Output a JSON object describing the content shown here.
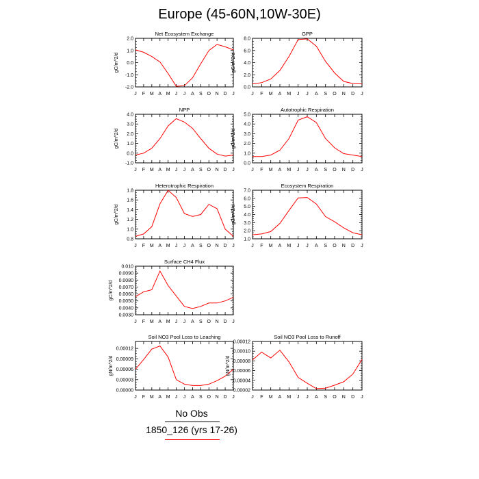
{
  "title": "Europe (45-60N,10W-30E)",
  "legend": {
    "obs_label": "No Obs",
    "model_label": "1850_126 (yrs 17-26)",
    "obs_color": "#000000",
    "model_color": "#ff0000"
  },
  "chart_data": [
    {
      "type": "line",
      "title": "Net Ecosystem Exchange",
      "ylabel": "gC/m^2/d",
      "categories": [
        "J",
        "F",
        "M",
        "A",
        "M",
        "J",
        "J",
        "A",
        "S",
        "O",
        "N",
        "D",
        "J"
      ],
      "ylim": [
        -2.0,
        2.0
      ],
      "yticks": [
        -2.0,
        -1.0,
        0.0,
        1.0,
        2.0
      ],
      "ytick_labels": [
        "-2.0",
        "-1.0",
        "0.0",
        "1.0",
        "2.0"
      ],
      "series": [
        {
          "values": [
            1.05,
            0.85,
            0.5,
            0.05,
            -0.9,
            -1.95,
            -1.9,
            -1.25,
            -0.1,
            1.0,
            1.5,
            1.3,
            1.05
          ],
          "color": "#ff0000"
        }
      ]
    },
    {
      "type": "line",
      "title": "GPP",
      "ylabel": "gC/m^2/d",
      "categories": [
        "J",
        "F",
        "M",
        "A",
        "M",
        "J",
        "J",
        "A",
        "S",
        "O",
        "N",
        "D",
        "J"
      ],
      "ylim": [
        0.0,
        8.0
      ],
      "yticks": [
        0.0,
        2.0,
        4.0,
        6.0,
        8.0
      ],
      "ytick_labels": [
        "0.0",
        "2.0",
        "4.0",
        "6.0",
        "8.0"
      ],
      "series": [
        {
          "values": [
            0.5,
            0.7,
            1.3,
            2.7,
            5.0,
            7.8,
            7.9,
            6.7,
            4.2,
            2.3,
            0.9,
            0.55,
            0.5
          ],
          "color": "#ff0000"
        }
      ]
    },
    {
      "type": "line",
      "title": "NPP",
      "ylabel": "gC/m^2/d",
      "categories": [
        "J",
        "F",
        "M",
        "A",
        "M",
        "J",
        "J",
        "A",
        "S",
        "O",
        "N",
        "D",
        "J"
      ],
      "ylim": [
        -1.0,
        4.0
      ],
      "yticks": [
        -1.0,
        0.0,
        1.0,
        2.0,
        3.0,
        4.0
      ],
      "ytick_labels": [
        "-1.0",
        "0.0",
        "1.0",
        "2.0",
        "3.0",
        "4.0"
      ],
      "series": [
        {
          "values": [
            -0.2,
            0.0,
            0.5,
            1.5,
            2.8,
            3.55,
            3.2,
            2.55,
            1.5,
            0.5,
            -0.1,
            -0.3,
            -0.2
          ],
          "color": "#ff0000"
        }
      ]
    },
    {
      "type": "line",
      "title": "Autotrophic Respiration",
      "ylabel": "gC/m^2/d",
      "categories": [
        "J",
        "F",
        "M",
        "A",
        "M",
        "J",
        "J",
        "A",
        "S",
        "O",
        "N",
        "D",
        "J"
      ],
      "ylim": [
        0.0,
        5.0
      ],
      "yticks": [
        0.0,
        1.0,
        2.0,
        3.0,
        4.0,
        5.0
      ],
      "ytick_labels": [
        "0.0",
        "1.0",
        "2.0",
        "3.0",
        "4.0",
        "5.0"
      ],
      "series": [
        {
          "values": [
            0.65,
            0.65,
            0.8,
            1.3,
            2.5,
            4.4,
            4.75,
            4.15,
            2.5,
            1.55,
            0.95,
            0.8,
            0.65
          ],
          "color": "#ff0000"
        }
      ]
    },
    {
      "type": "line",
      "title": "Heterotrophic Respiration",
      "ylabel": "gC/m^2/d",
      "categories": [
        "J",
        "F",
        "M",
        "A",
        "M",
        "J",
        "J",
        "A",
        "S",
        "O",
        "N",
        "D",
        "J"
      ],
      "ylim": [
        0.8,
        1.8
      ],
      "yticks": [
        0.8,
        1.0,
        1.2,
        1.4,
        1.6,
        1.8
      ],
      "ytick_labels": [
        "0.8",
        "1.0",
        "1.2",
        "1.4",
        "1.6",
        "1.8"
      ],
      "series": [
        {
          "values": [
            0.85,
            0.9,
            1.05,
            1.52,
            1.8,
            1.65,
            1.32,
            1.26,
            1.3,
            1.51,
            1.42,
            1.0,
            0.85
          ],
          "color": "#ff0000"
        }
      ]
    },
    {
      "type": "line",
      "title": "Ecosystem Respiration",
      "ylabel": "gC/m^2/d",
      "categories": [
        "J",
        "F",
        "M",
        "A",
        "M",
        "J",
        "J",
        "A",
        "S",
        "O",
        "N",
        "D",
        "J"
      ],
      "ylim": [
        1.0,
        7.0
      ],
      "yticks": [
        1.0,
        2.0,
        3.0,
        4.0,
        5.0,
        6.0,
        7.0
      ],
      "ytick_labels": [
        "1.0",
        "2.0",
        "3.0",
        "4.0",
        "5.0",
        "6.0",
        "7.0"
      ],
      "series": [
        {
          "values": [
            1.5,
            1.6,
            1.9,
            2.9,
            4.5,
            6.05,
            6.1,
            5.3,
            3.75,
            3.1,
            2.35,
            1.75,
            1.5
          ],
          "color": "#ff0000"
        }
      ]
    },
    {
      "type": "line",
      "title": "Surface CH4 Flux",
      "ylabel": "gC/m^2/d",
      "categories": [
        "J",
        "F",
        "M",
        "A",
        "M",
        "J",
        "J",
        "A",
        "S",
        "O",
        "N",
        "D",
        "J"
      ],
      "ylim": [
        0.003,
        0.01
      ],
      "yticks": [
        0.003,
        0.004,
        0.005,
        0.006,
        0.007,
        0.008,
        0.009,
        0.01
      ],
      "ytick_labels": [
        "0.0030",
        "0.0040",
        "0.0050",
        "0.0060",
        "0.0070",
        "0.0080",
        "0.0090",
        "0.010"
      ],
      "series": [
        {
          "values": [
            0.0056,
            0.0063,
            0.0066,
            0.0093,
            0.0072,
            0.0057,
            0.0042,
            0.0039,
            0.0042,
            0.0047,
            0.0047,
            0.005,
            0.0055
          ],
          "color": "#ff0000"
        }
      ]
    },
    {
      "type": "line",
      "title": "Soil NO3 Pool Loss to Leaching",
      "ylabel": "gN/m^2/d",
      "categories": [
        "J",
        "F",
        "M",
        "A",
        "M",
        "J",
        "J",
        "A",
        "S",
        "O",
        "N",
        "D",
        "J"
      ],
      "ylim": [
        0.0,
        0.00014
      ],
      "yticks": [
        0.0,
        3e-05,
        6e-05,
        9e-05,
        0.00012
      ],
      "ytick_labels": [
        "0.00000",
        "0.00003",
        "0.00006",
        "0.00009",
        "0.00012"
      ],
      "series": [
        {
          "values": [
            6e-05,
            8.8e-05,
            0.000118,
            0.000127,
            9.5e-05,
            3e-05,
            1.7e-05,
            1.3e-05,
            1.3e-05,
            1.7e-05,
            2.7e-05,
            4e-05,
            6e-05
          ],
          "color": "#ff0000"
        }
      ]
    },
    {
      "type": "line",
      "title": "Soil NO3 Pool Loss to Runoff",
      "ylabel": "gN/m^2/d",
      "categories": [
        "J",
        "F",
        "M",
        "A",
        "M",
        "J",
        "J",
        "A",
        "S",
        "O",
        "N",
        "D",
        "J"
      ],
      "ylim": [
        2e-05,
        0.00012
      ],
      "yticks": [
        2e-05,
        4e-05,
        6e-05,
        8e-05,
        0.0001,
        0.00012
      ],
      "ytick_labels": [
        "0.00002",
        "0.00004",
        "0.00006",
        "0.00008",
        "0.00010",
        "0.00012"
      ],
      "series": [
        {
          "values": [
            8.2e-05,
            9.8e-05,
            8.6e-05,
            0.000102,
            7.8e-05,
            4.6e-05,
            3.4e-05,
            2.3e-05,
            2.4e-05,
            3e-05,
            3.7e-05,
            5.3e-05,
            8.3e-05
          ],
          "color": "#ff0000"
        }
      ]
    }
  ]
}
